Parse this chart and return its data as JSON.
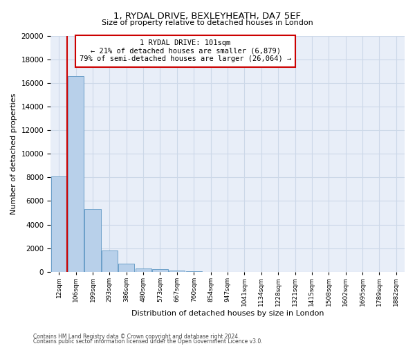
{
  "title": "1, RYDAL DRIVE, BEXLEYHEATH, DA7 5EF",
  "subtitle": "Size of property relative to detached houses in London",
  "xlabel": "Distribution of detached houses by size in London",
  "ylabel": "Number of detached properties",
  "bar_values": [
    8100,
    16600,
    5300,
    1800,
    700,
    300,
    200,
    100,
    50,
    0,
    0,
    0,
    0,
    0,
    0,
    0,
    0,
    0,
    0,
    0
  ],
  "bar_color": "#b8d0ea",
  "bar_edge_color": "#6a9fc8",
  "categories": [
    "12sqm",
    "106sqm",
    "199sqm",
    "293sqm",
    "386sqm",
    "480sqm",
    "573sqm",
    "667sqm",
    "760sqm",
    "854sqm",
    "947sqm",
    "1041sqm",
    "1134sqm",
    "1228sqm",
    "1321sqm",
    "1415sqm",
    "1508sqm",
    "1602sqm",
    "1695sqm",
    "1789sqm",
    "1882sqm"
  ],
  "ylim": [
    0,
    20000
  ],
  "yticks": [
    0,
    2000,
    4000,
    6000,
    8000,
    10000,
    12000,
    14000,
    16000,
    18000,
    20000
  ],
  "vline_color": "#cc0000",
  "annotation_title": "1 RYDAL DRIVE: 101sqm",
  "annotation_line1": "← 21% of detached houses are smaller (6,879)",
  "annotation_line2": "79% of semi-detached houses are larger (26,064) →",
  "annotation_box_facecolor": "#ffffff",
  "annotation_box_edgecolor": "#cc0000",
  "grid_color": "#ccd8e8",
  "plot_bg_color": "#e8eef8",
  "fig_bg_color": "#ffffff",
  "footer1": "Contains HM Land Registry data © Crown copyright and database right 2024.",
  "footer2": "Contains public sector information licensed under the Open Government Licence v3.0."
}
